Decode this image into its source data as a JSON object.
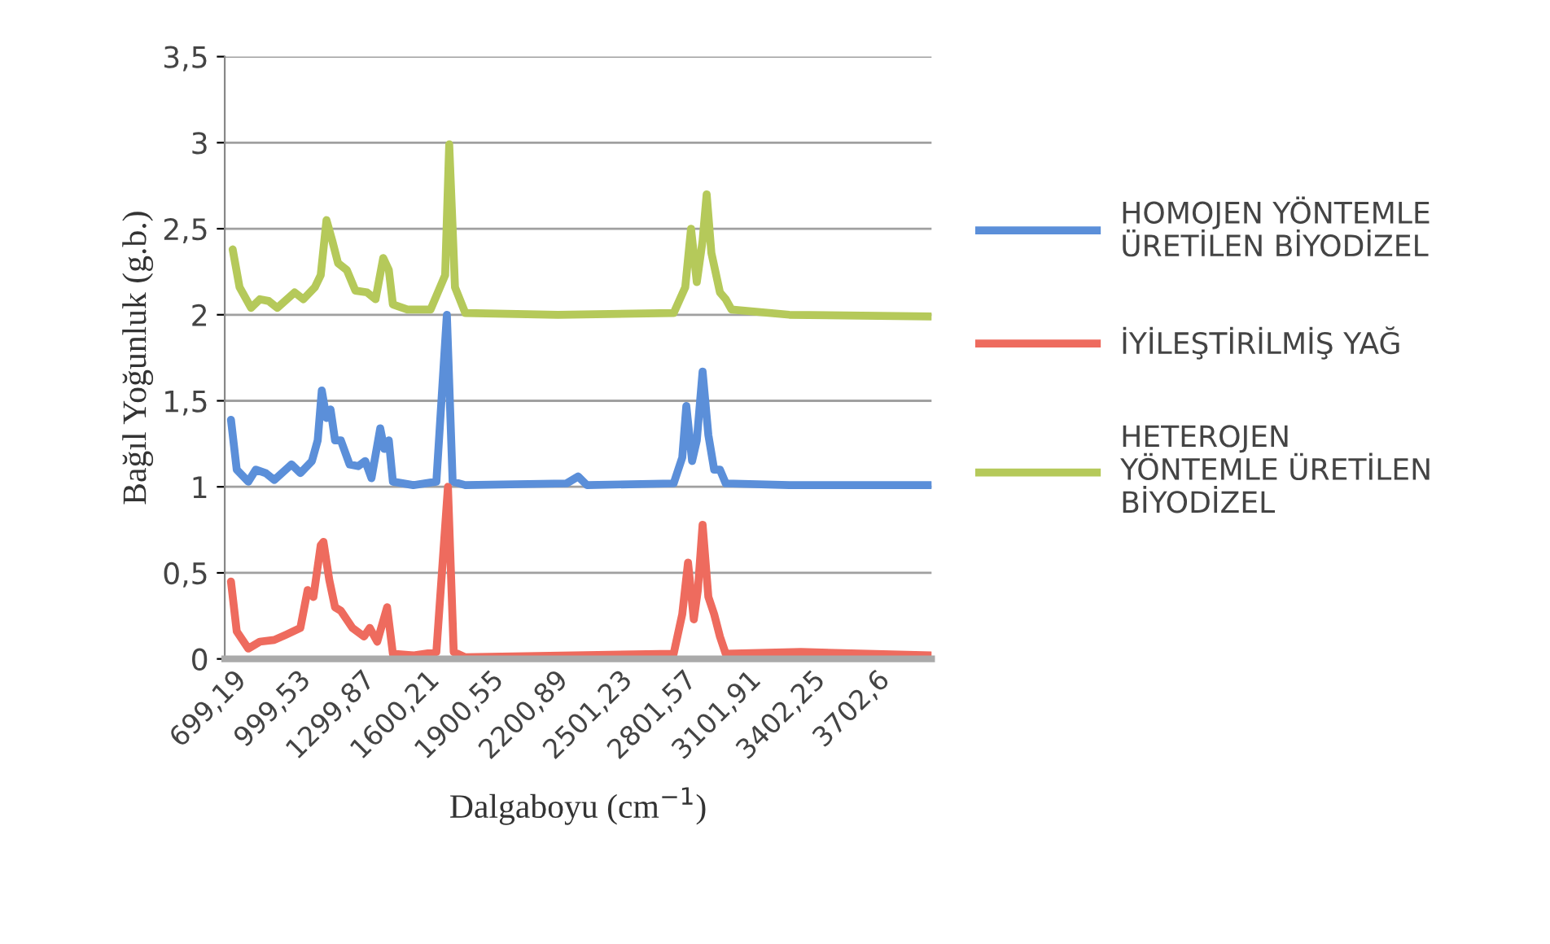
{
  "chart_data": {
    "type": "line",
    "xlabel": "Dalgaboyu (cm$^{−1}$)",
    "ylabel": "Bağıl Yoğunluk (g.b.)",
    "xlim": [
      660,
      3960
    ],
    "xticks": [
      {
        "value": 699.19,
        "label": "699,19"
      },
      {
        "value": 999.53,
        "label": "999,53"
      },
      {
        "value": 1299.87,
        "label": "1299,87"
      },
      {
        "value": 1600.21,
        "label": "1600,21"
      },
      {
        "value": 1900.55,
        "label": "1900,55"
      },
      {
        "value": 2200.89,
        "label": "2200,89"
      },
      {
        "value": 2501.23,
        "label": "2501,23"
      },
      {
        "value": 2801.57,
        "label": "2801,57"
      },
      {
        "value": 3101.91,
        "label": "3101,91"
      },
      {
        "value": 3402.25,
        "label": "3402,25"
      },
      {
        "value": 3702.6,
        "label": "3702,6"
      }
    ],
    "ylim": [
      0,
      3.5
    ],
    "yticks": [
      0,
      {
        "value": 0.5,
        "label": "0,5"
      },
      1,
      {
        "value": 1.5,
        "label": "1,5"
      },
      2,
      {
        "value": 2.5,
        "label": "2,5"
      },
      3,
      {
        "value": 3.5,
        "label": "3,5"
      }
    ],
    "grid": "y",
    "legend": "right",
    "marker": "none",
    "line_style": "solid",
    "series": [
      {
        "name": "HOMOJEN YÖNTEMLE\nÜRETİLEN BİYODİZEL",
        "color": "#5b8fd9",
        "x": [
          689,
          716,
          770,
          805,
          851,
          891,
          972,
          1013,
          1067,
          1094,
          1113,
          1135,
          1154,
          1175,
          1202,
          1243,
          1283,
          1316,
          1345,
          1386,
          1405,
          1426,
          1445,
          1540,
          1648,
          1697,
          1724,
          1783,
          2256,
          2310,
          2351,
          2756,
          2796,
          2815,
          2842,
          2864,
          2891,
          2918,
          2945,
          2972,
          2999,
          3296,
          3958
        ],
        "values": [
          1.39,
          1.1,
          1.03,
          1.1,
          1.08,
          1.04,
          1.13,
          1.08,
          1.15,
          1.27,
          1.56,
          1.4,
          1.45,
          1.27,
          1.27,
          1.13,
          1.12,
          1.15,
          1.05,
          1.34,
          1.22,
          1.27,
          1.03,
          1.01,
          1.03,
          2.0,
          1.03,
          1.01,
          1.02,
          1.06,
          1.01,
          1.02,
          1.17,
          1.47,
          1.15,
          1.27,
          1.67,
          1.3,
          1.1,
          1.1,
          1.02,
          1.01,
          1.01
        ]
      },
      {
        "name": "İYİLEŞTİRİLMİŞ YAĞ",
        "color": "#ee6b5e",
        "x": [
          689,
          716,
          770,
          824,
          891,
          945,
          1013,
          1047,
          1074,
          1108,
          1121,
          1148,
          1175,
          1202,
          1256,
          1310,
          1337,
          1372,
          1418,
          1445,
          1540,
          1648,
          1702,
          1729,
          1783,
          2756,
          2796,
          2823,
          2850,
          2869,
          2891,
          2918,
          2945,
          2972,
          2999,
          3350,
          3958
        ],
        "values": [
          0.45,
          0.16,
          0.06,
          0.1,
          0.11,
          0.14,
          0.18,
          0.4,
          0.36,
          0.66,
          0.68,
          0.46,
          0.3,
          0.28,
          0.18,
          0.13,
          0.18,
          0.1,
          0.3,
          0.03,
          0.02,
          0.04,
          1.0,
          0.04,
          0.01,
          0.03,
          0.26,
          0.56,
          0.23,
          0.4,
          0.78,
          0.36,
          0.26,
          0.13,
          0.03,
          0.04,
          0.02
        ]
      },
      {
        "name": "HETEROJEN\nYÖNTEMLE ÜRETİLEN\nBİYODİZEL",
        "color": "#b5c95a",
        "x": [
          697,
          729,
          783,
          824,
          865,
          905,
          986,
          1027,
          1081,
          1108,
          1135,
          1162,
          1189,
          1230,
          1270,
          1324,
          1364,
          1400,
          1426,
          1445,
          1513,
          1621,
          1689,
          1708,
          1735,
          1783,
          2215,
          2756,
          2810,
          2837,
          2864,
          2891,
          2910,
          2932,
          2972,
          2999,
          3026,
          3296,
          3958
        ],
        "values": [
          2.38,
          2.16,
          2.04,
          2.09,
          2.08,
          2.04,
          2.13,
          2.09,
          2.16,
          2.23,
          2.55,
          2.43,
          2.3,
          2.26,
          2.14,
          2.13,
          2.09,
          2.33,
          2.26,
          2.06,
          2.03,
          2.03,
          2.23,
          2.99,
          2.16,
          2.01,
          2.0,
          2.01,
          2.16,
          2.5,
          2.19,
          2.43,
          2.7,
          2.36,
          2.13,
          2.09,
          2.03,
          2.0,
          1.99
        ]
      }
    ]
  }
}
